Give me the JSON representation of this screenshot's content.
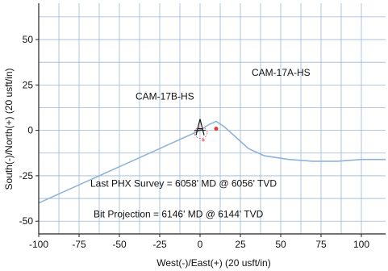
{
  "chart_data": {
    "type": "line",
    "title": "",
    "xlabel": "West(-)/East(+) (20 usft/in)",
    "ylabel": "South(-)/North(+) (20 usft/in)",
    "xlim": [
      -100,
      115
    ],
    "ylim": [
      -57,
      70
    ],
    "xticks": [
      -100,
      -75,
      -50,
      -25,
      0,
      25,
      50,
      75,
      100
    ],
    "yticks": [
      -50,
      -25,
      0,
      25,
      50
    ],
    "grid": true,
    "series": [
      {
        "name": "CAM-17A-HS",
        "color": "#8fb3d9",
        "x": [
          0,
          5,
          10,
          15,
          20,
          25,
          30,
          40,
          55,
          70,
          85,
          100,
          115
        ],
        "y": [
          0,
          3,
          5,
          2,
          -2,
          -6,
          -10,
          -14,
          -16,
          -17,
          -17,
          -16,
          -16
        ]
      },
      {
        "name": "CAM-17B-HS",
        "color": "#8fb3d9",
        "x": [
          0,
          -25,
          -50,
          -75,
          -100
        ],
        "y": [
          0,
          -10,
          -20,
          -30,
          -40
        ]
      }
    ],
    "annotations": [
      {
        "text": "CAM-17A-HS",
        "x": 32,
        "y": 30
      },
      {
        "text": "CAM-17B-HS",
        "x": -40,
        "y": 17
      },
      {
        "text": "Last PHX Survey = 6058' MD @ 6056' TVD",
        "x": -68,
        "y": -31
      },
      {
        "text": "Bit Projection = 6146' MD @ 6144' TVD",
        "x": -66,
        "y": -48
      }
    ]
  }
}
